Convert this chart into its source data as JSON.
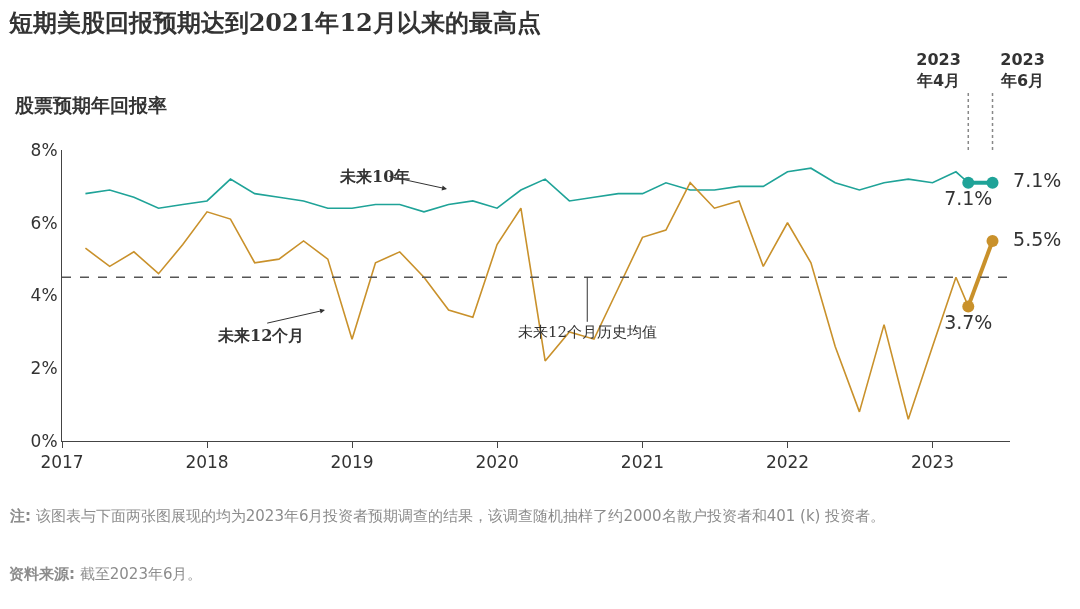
{
  "chart_data": {
    "type": "line",
    "title": "短期美股回报预期达到2021年12月以来的最高点",
    "subtitle": "股票预期年回报率",
    "x": [
      "2017-03",
      "2017-05",
      "2017-07",
      "2017-09",
      "2017-11",
      "2018-01",
      "2018-03",
      "2018-05",
      "2018-07",
      "2018-09",
      "2018-11",
      "2019-01",
      "2019-03",
      "2019-05",
      "2019-07",
      "2019-09",
      "2019-11",
      "2020-01",
      "2020-03",
      "2020-05",
      "2020-07",
      "2020-09",
      "2020-11",
      "2021-01",
      "2021-03",
      "2021-05",
      "2021-07",
      "2021-09",
      "2021-11",
      "2022-01",
      "2022-03",
      "2022-05",
      "2022-07",
      "2022-09",
      "2022-11",
      "2023-01",
      "2023-03",
      "2023-04"
    ],
    "series": [
      {
        "color": "#1fa398",
        "values": [
          6.8,
          6.9,
          6.7,
          6.4,
          6.5,
          6.6,
          7.2,
          6.8,
          6.7,
          6.6,
          6.4,
          6.4,
          6.5,
          6.5,
          6.3,
          6.5,
          6.6,
          6.4,
          6.9,
          7.2,
          6.6,
          6.7,
          6.8,
          6.8,
          7.1,
          6.9,
          6.9,
          7.0,
          7.0,
          7.4,
          7.5,
          7.1,
          6.9,
          7.1,
          7.2,
          7.1,
          7.4,
          7.1
        ]
      },
      {
        "color": "#c9912b",
        "values": [
          5.3,
          4.8,
          5.2,
          4.6,
          5.4,
          6.3,
          6.1,
          4.9,
          5.0,
          5.5,
          5.0,
          2.8,
          4.9,
          5.2,
          4.5,
          3.6,
          3.4,
          5.4,
          6.4,
          2.2,
          3.0,
          2.8,
          4.2,
          5.6,
          5.8,
          7.1,
          6.4,
          6.6,
          4.8,
          6.0,
          4.9,
          2.6,
          0.8,
          3.2,
          0.6,
          2.6,
          4.5,
          3.7
        ]
      },
      {
        "color": "#1fa398",
        "x": [
          "2023-04",
          "2023-06"
        ],
        "values": [
          7.1,
          7.1
        ],
        "marker": "circle",
        "value_labels": [
          "7.1%",
          "7.1%"
        ]
      },
      {
        "color": "#c9912b",
        "x": [
          "2023-04",
          "2023-06"
        ],
        "values": [
          3.7,
          5.5
        ],
        "marker": "circle",
        "value_labels": [
          "3.7%",
          "5.5%"
        ]
      }
    ],
    "xlim": [
      "2017-01-01",
      "2023-07-15"
    ],
    "xticks": [
      {
        "value": "2017-01-01",
        "label": "2017"
      },
      {
        "value": "2018-01-01",
        "label": "2018"
      },
      {
        "value": "2019-01-01",
        "label": "2019"
      },
      {
        "value": "2020-01-01",
        "label": "2020"
      },
      {
        "value": "2021-01-01",
        "label": "2021"
      },
      {
        "value": "2022-01-01",
        "label": "2022"
      },
      {
        "value": "2023-01-01",
        "label": "2023"
      }
    ],
    "ylim": [
      0,
      8
    ],
    "yticks": [
      {
        "value": 0,
        "label": "0%"
      },
      {
        "value": 2,
        "label": "2%"
      },
      {
        "value": 4,
        "label": "4%"
      },
      {
        "value": 6,
        "label": "6%"
      },
      {
        "value": 8,
        "label": "8%"
      }
    ],
    "ref_lines": [
      {
        "axis": "y",
        "value": 4.5,
        "label": "未来12个月历史均值",
        "color": "#555555",
        "line_style": "dashed"
      },
      {
        "axis": "x",
        "value": "2023-04",
        "label": "2023\n年4月",
        "color": "#888888",
        "line_style": "dotted"
      },
      {
        "axis": "x",
        "value": "2023-06",
        "label": "2023\n年6月",
        "color": "#888888",
        "line_style": "dotted"
      }
    ],
    "annotations": [
      "未来10年",
      "未来12个月",
      "注: 该图表与下面两张图展现的均为2023年6月投资者预期调查的结果，该调查随机抽样了约2000名散户投资者和401 (k) 投资者。",
      "资料来源: 截至2023年6月。"
    ]
  }
}
